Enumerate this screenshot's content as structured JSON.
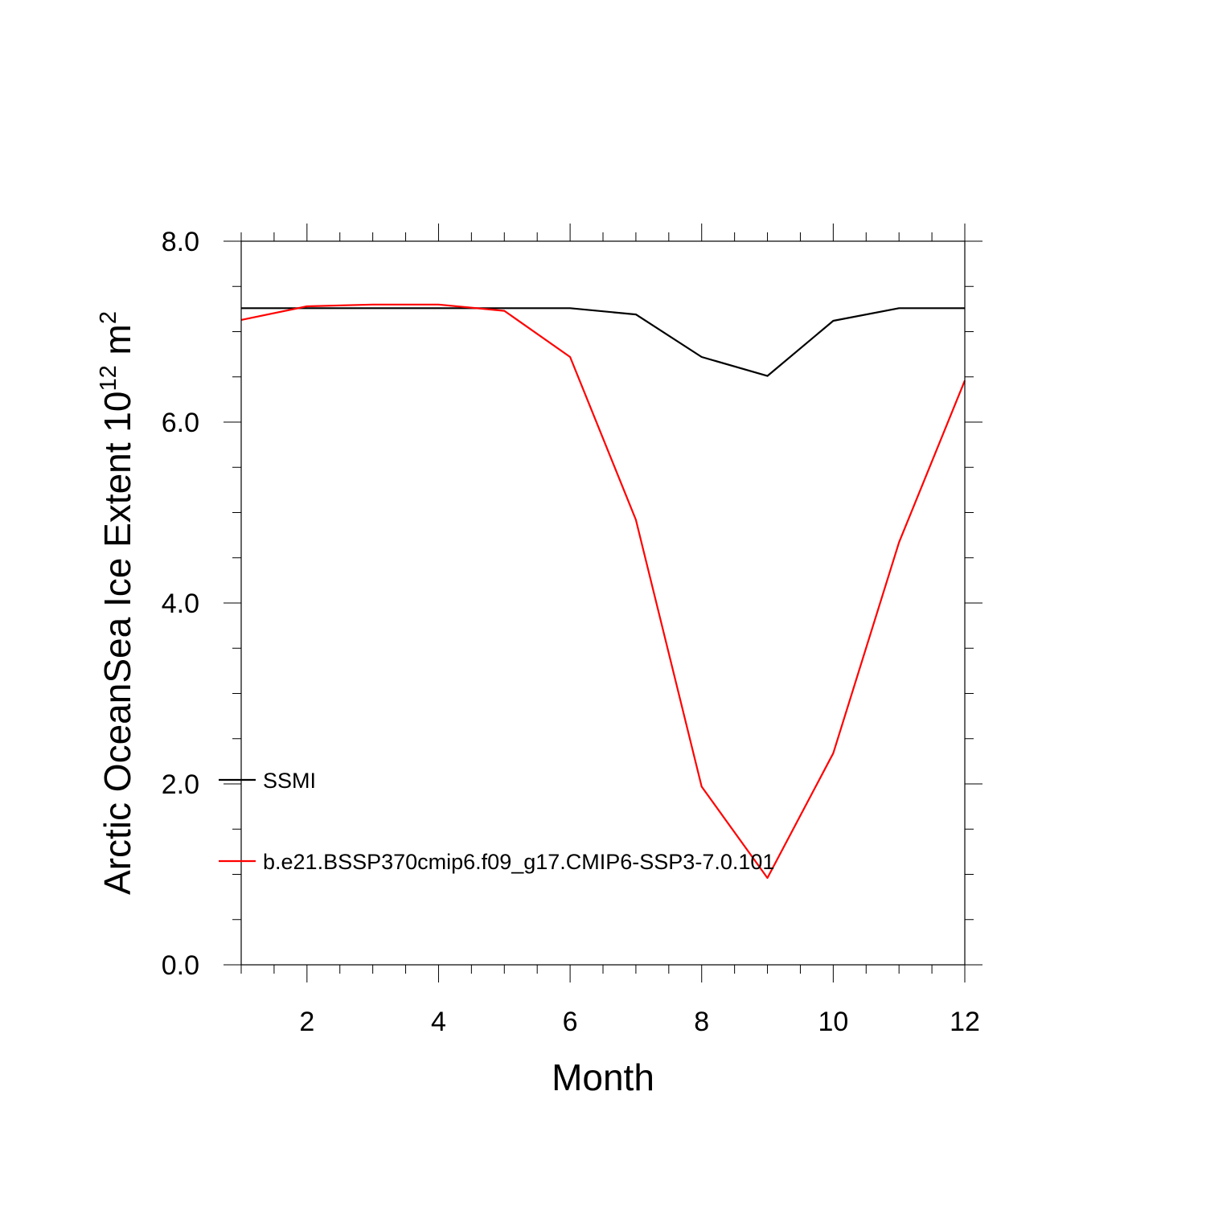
{
  "chart_data": {
    "type": "line",
    "title": "",
    "xlabel": "Month",
    "ylabel_main": "Arctic OceanSea Ice Extent 10",
    "ylabel_exponent": "12",
    "ylabel_unit": " m",
    "ylabel_unit_exponent": "2",
    "xlim": [
      1,
      12
    ],
    "ylim": [
      0,
      8
    ],
    "x_ticks": [
      2,
      4,
      6,
      8,
      10,
      12
    ],
    "x_tick_labels": [
      "2",
      "4",
      "6",
      "8",
      "10",
      "12"
    ],
    "y_ticks": [
      0,
      2,
      4,
      6,
      8
    ],
    "y_tick_labels": [
      "0.0",
      "2.0",
      "4.0",
      "6.0",
      "8.0"
    ],
    "grid": false,
    "legend_placement": "lower-left",
    "x": [
      1,
      2,
      3,
      4,
      5,
      6,
      7,
      8,
      9,
      10,
      11,
      12
    ],
    "series": [
      {
        "name": "SSMI",
        "color": "#000000",
        "values": [
          7.26,
          7.26,
          7.26,
          7.26,
          7.26,
          7.26,
          7.19,
          6.72,
          6.51,
          7.12,
          7.26,
          7.26
        ]
      },
      {
        "name": "b.e21.BSSP370cmip6.f09_g17.CMIP6-SSP3-7.0.101",
        "color": "#ff0000",
        "values": [
          7.13,
          7.28,
          7.3,
          7.3,
          7.23,
          6.72,
          4.92,
          1.97,
          0.96,
          2.34,
          4.67,
          6.46
        ]
      }
    ]
  }
}
